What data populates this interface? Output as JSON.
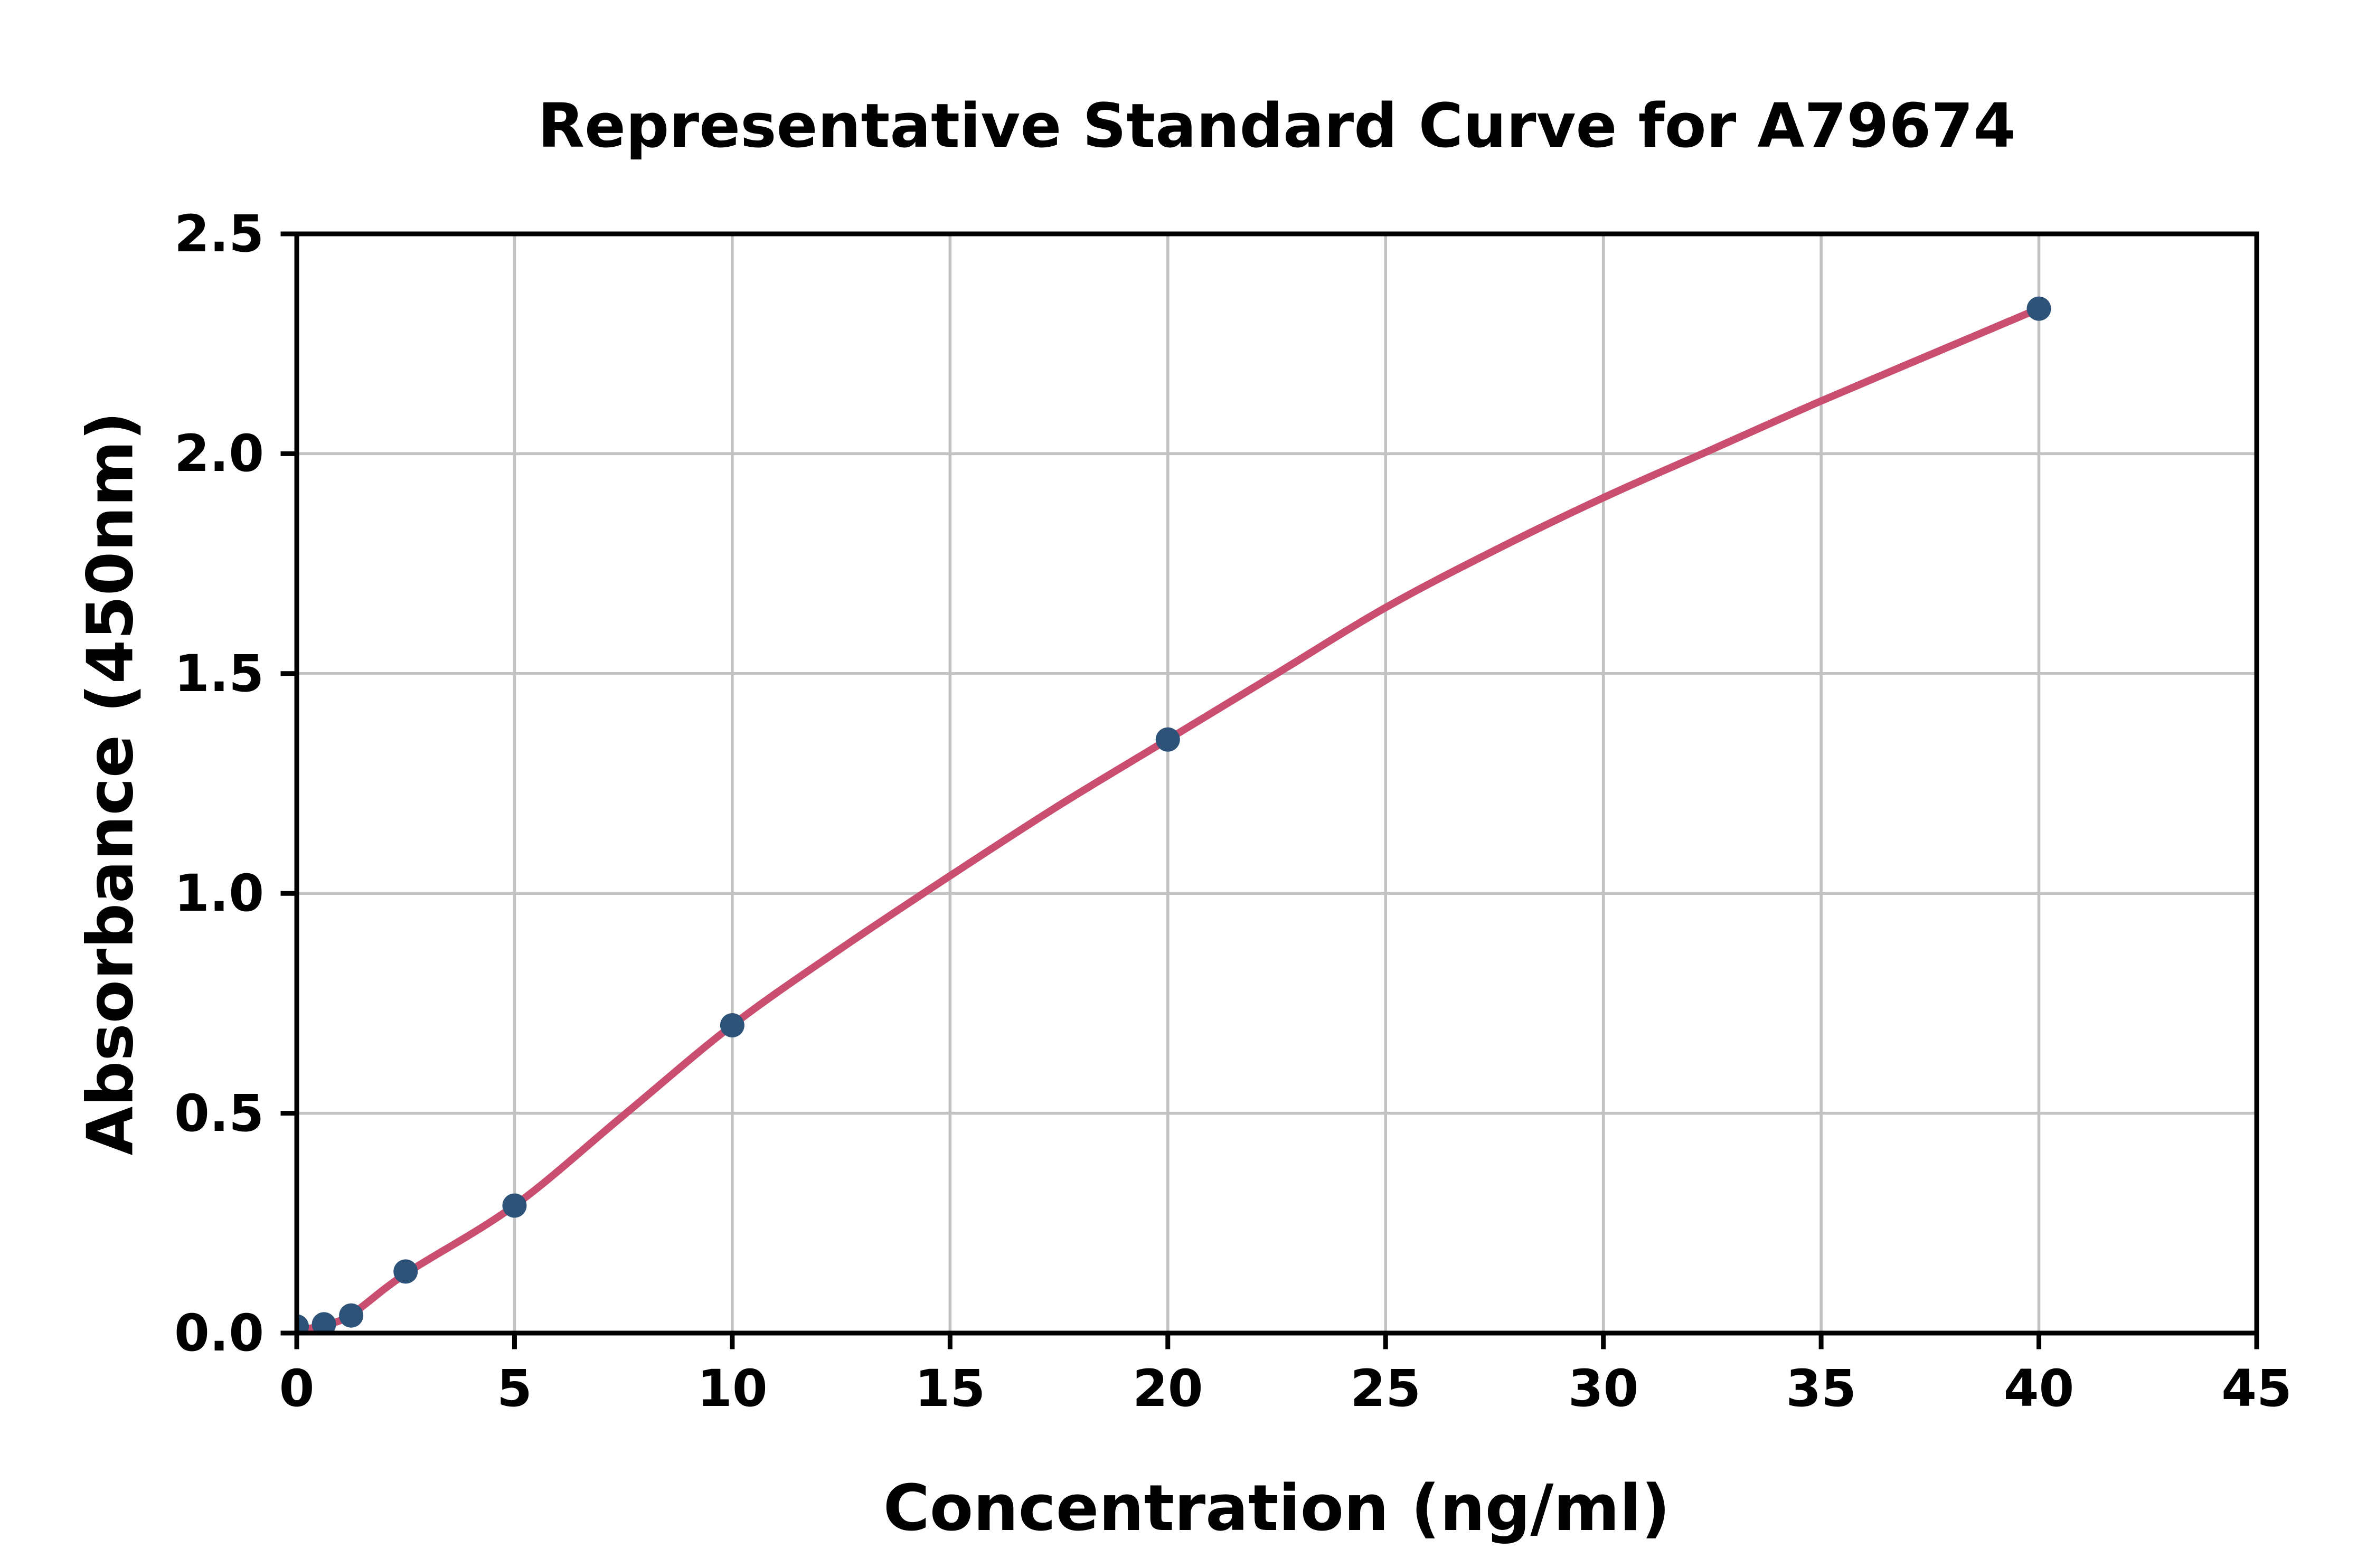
{
  "figure": {
    "background_color": "#ffffff",
    "text_color": "#000000"
  },
  "style": {
    "marker_color": "#2D5379",
    "curve_color": "#C94E70",
    "grid_color": "#C2C2C2",
    "spine_color": "#000000",
    "marker_radius": 23,
    "curve_width": 14,
    "grid_width": 5.5,
    "spine_width": 9,
    "tick_length": 26,
    "tick_width": 9
  },
  "chart_data": {
    "type": "scatter",
    "title": "Representative Standard Curve for A79674",
    "xlabel": "Concentration (ng/ml)",
    "ylabel": "Absorbance (450nm)",
    "xlim": [
      0,
      45
    ],
    "ylim": [
      0,
      2.5
    ],
    "x_ticks": [
      0,
      5,
      10,
      15,
      20,
      25,
      30,
      35,
      40,
      45
    ],
    "x_tick_labels": [
      "0",
      "5",
      "10",
      "15",
      "20",
      "25",
      "30",
      "35",
      "40",
      "45"
    ],
    "y_ticks": [
      0.0,
      0.5,
      1.0,
      1.5,
      2.0,
      2.5
    ],
    "y_tick_labels": [
      "0.0",
      "0.5",
      "1.0",
      "1.5",
      "2.0",
      "2.5"
    ],
    "grid": true,
    "legend": "none",
    "series": [
      {
        "name": "standard-points",
        "type": "scatter",
        "color": "#2D5379",
        "points": [
          [
            0,
            0.015
          ],
          [
            0.625,
            0.02
          ],
          [
            1.25,
            0.04
          ],
          [
            2.5,
            0.14
          ],
          [
            5,
            0.29
          ],
          [
            10,
            0.7
          ],
          [
            20,
            1.35
          ],
          [
            40,
            2.33
          ]
        ]
      },
      {
        "name": "fitted-curve",
        "type": "line",
        "color": "#C94E70",
        "points": [
          [
            0,
            0.005
          ],
          [
            0.625,
            0.018
          ],
          [
            1.25,
            0.042
          ],
          [
            2.5,
            0.135
          ],
          [
            5,
            0.29
          ],
          [
            7.5,
            0.495
          ],
          [
            10,
            0.7
          ],
          [
            12.5,
            0.875
          ],
          [
            15,
            1.04
          ],
          [
            17.5,
            1.2
          ],
          [
            20,
            1.35
          ],
          [
            22.5,
            1.5
          ],
          [
            25,
            1.65
          ],
          [
            27.5,
            1.78
          ],
          [
            30,
            1.9
          ],
          [
            32.5,
            2.01
          ],
          [
            35,
            2.12
          ],
          [
            37.5,
            2.225
          ],
          [
            40,
            2.33
          ]
        ]
      }
    ]
  }
}
